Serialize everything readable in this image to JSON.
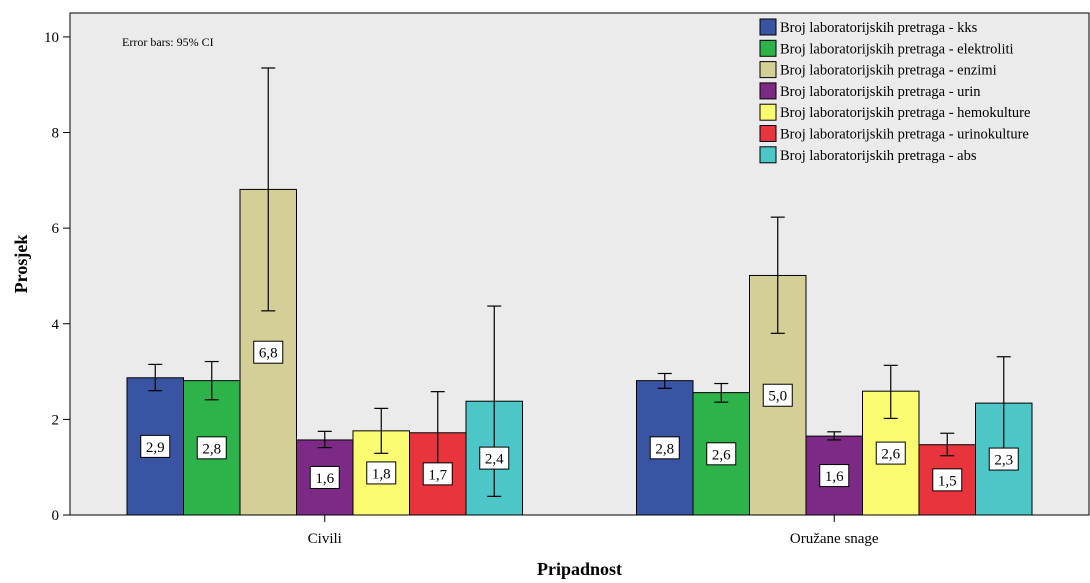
{
  "chart_data": {
    "type": "bar",
    "xlabel": "Pripadnost",
    "ylabel": "Prosjek",
    "note": "Error bars: 95% CI",
    "categories": [
      "Civili",
      "Oružane snage"
    ],
    "ylim": [
      0,
      10.5
    ],
    "yticks": [
      0,
      2,
      4,
      6,
      8,
      10
    ],
    "grid": false,
    "legend_position": "top-right",
    "series": [
      {
        "name": "Broj laboratorijskih pretraga - kks",
        "color": "#3a54a4",
        "values": [
          2.87,
          2.81
        ],
        "ci_low": [
          2.6,
          2.65
        ],
        "ci_high": [
          3.15,
          2.96
        ],
        "labels": [
          "2,9",
          "2,8"
        ]
      },
      {
        "name": "Broj laboratorijskih pretraga - elektroliti",
        "color": "#2db34a",
        "values": [
          2.81,
          2.56
        ],
        "ci_low": [
          2.41,
          2.36
        ],
        "ci_high": [
          3.21,
          2.75
        ],
        "labels": [
          "2,8",
          "2,6"
        ]
      },
      {
        "name": "Broj laboratorijskih pretraga - enzimi",
        "color": "#d4cf96",
        "values": [
          6.81,
          5.01
        ],
        "ci_low": [
          4.27,
          3.8
        ],
        "ci_high": [
          9.35,
          6.23
        ],
        "labels": [
          "6,8",
          "5,0"
        ]
      },
      {
        "name": "Broj laboratorijskih pretraga - urin",
        "color": "#7d2a86",
        "values": [
          1.57,
          1.65
        ],
        "ci_low": [
          1.41,
          1.57
        ],
        "ci_high": [
          1.75,
          1.74
        ],
        "labels": [
          "1,6",
          "1,6"
        ]
      },
      {
        "name": "Broj laboratorijskih pretraga - hemokulture",
        "color": "#fbfb72",
        "values": [
          1.76,
          2.59
        ],
        "ci_low": [
          1.29,
          2.02
        ],
        "ci_high": [
          2.23,
          3.13
        ],
        "labels": [
          "1,8",
          "2,6"
        ]
      },
      {
        "name": "Broj laboratorijskih pretraga - urinokulture",
        "color": "#e8343c",
        "values": [
          1.72,
          1.47
        ],
        "ci_low": [
          0.86,
          1.24
        ],
        "ci_high": [
          2.58,
          1.71
        ],
        "labels": [
          "1,7",
          "1,5"
        ]
      },
      {
        "name": "Broj laboratorijskih pretraga - abs",
        "color": "#4cc6c6",
        "values": [
          2.38,
          2.34
        ],
        "ci_low": [
          0.39,
          1.37
        ],
        "ci_high": [
          4.37,
          3.31
        ],
        "labels": [
          "2,4",
          "2,3"
        ]
      }
    ]
  }
}
